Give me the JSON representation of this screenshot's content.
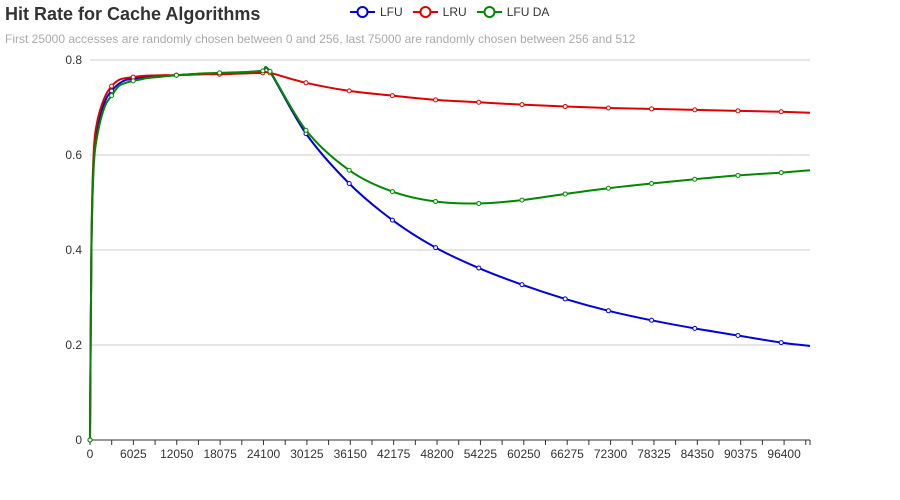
{
  "chart_data": {
    "type": "line",
    "title": "Hit Rate for Cache Algorithms",
    "subtitle": "First 25000 accesses are randomly chosen between 0 and 256, last 75000 are randomly chosen between 256 and 512",
    "xlabel": "",
    "ylabel": "",
    "xlim": [
      0,
      100000
    ],
    "ylim": [
      0,
      0.8
    ],
    "x_ticks": [
      "0",
      "6025",
      "12050",
      "18075",
      "24100",
      "30125",
      "36150",
      "42175",
      "48200",
      "54225",
      "60250",
      "66275",
      "72300",
      "78325",
      "84350",
      "90375",
      "96400"
    ],
    "y_ticks": [
      "0",
      "0.2",
      "0.4",
      "0.6",
      "0.8"
    ],
    "grid": "horizontal",
    "legend_position": "top-center",
    "series": [
      {
        "name": "LFU",
        "color": "#0000dd",
        "x": [
          0,
          200,
          500,
          1000,
          2000,
          3000,
          4000,
          5000,
          6000,
          7000,
          8000,
          10000,
          12000,
          14000,
          16000,
          18000,
          20000,
          22000,
          24000,
          25000,
          30000,
          36000,
          42000,
          48000,
          54000,
          60000,
          66000,
          72000,
          78000,
          84000,
          90000,
          96000,
          100000
        ],
        "y": [
          0,
          0.4,
          0.58,
          0.65,
          0.71,
          0.735,
          0.75,
          0.758,
          0.76,
          0.762,
          0.764,
          0.766,
          0.768,
          0.77,
          0.771,
          0.772,
          0.773,
          0.774,
          0.776,
          0.775,
          0.645,
          0.54,
          0.463,
          0.405,
          0.362,
          0.327,
          0.297,
          0.272,
          0.252,
          0.235,
          0.22,
          0.205,
          0.198
        ]
      },
      {
        "name": "LRU",
        "color": "#dd0000",
        "x": [
          0,
          200,
          500,
          1000,
          2000,
          3000,
          4000,
          5000,
          6000,
          7000,
          8000,
          10000,
          12000,
          14000,
          16000,
          18000,
          20000,
          22000,
          24000,
          25000,
          30000,
          36000,
          42000,
          48000,
          54000,
          60000,
          66000,
          72000,
          78000,
          84000,
          90000,
          96000,
          100000
        ],
        "y": [
          0,
          0.42,
          0.6,
          0.67,
          0.72,
          0.745,
          0.758,
          0.762,
          0.764,
          0.766,
          0.767,
          0.768,
          0.768,
          0.769,
          0.77,
          0.77,
          0.771,
          0.772,
          0.773,
          0.773,
          0.752,
          0.735,
          0.725,
          0.716,
          0.711,
          0.706,
          0.702,
          0.699,
          0.697,
          0.695,
          0.693,
          0.691,
          0.689
        ]
      },
      {
        "name": "LFU DA",
        "color": "#008800",
        "x": [
          0,
          200,
          500,
          1000,
          2000,
          3000,
          4000,
          5000,
          6000,
          7000,
          8000,
          10000,
          12000,
          14000,
          16000,
          18000,
          20000,
          22000,
          24000,
          25000,
          30000,
          36000,
          42000,
          48000,
          54000,
          60000,
          66000,
          72000,
          78000,
          84000,
          90000,
          96000,
          100000
        ],
        "y": [
          0,
          0.4,
          0.57,
          0.64,
          0.7,
          0.725,
          0.745,
          0.752,
          0.756,
          0.759,
          0.762,
          0.765,
          0.768,
          0.77,
          0.772,
          0.773,
          0.774,
          0.775,
          0.777,
          0.776,
          0.652,
          0.568,
          0.523,
          0.502,
          0.498,
          0.505,
          0.518,
          0.53,
          0.54,
          0.549,
          0.557,
          0.563,
          0.568
        ]
      }
    ]
  }
}
